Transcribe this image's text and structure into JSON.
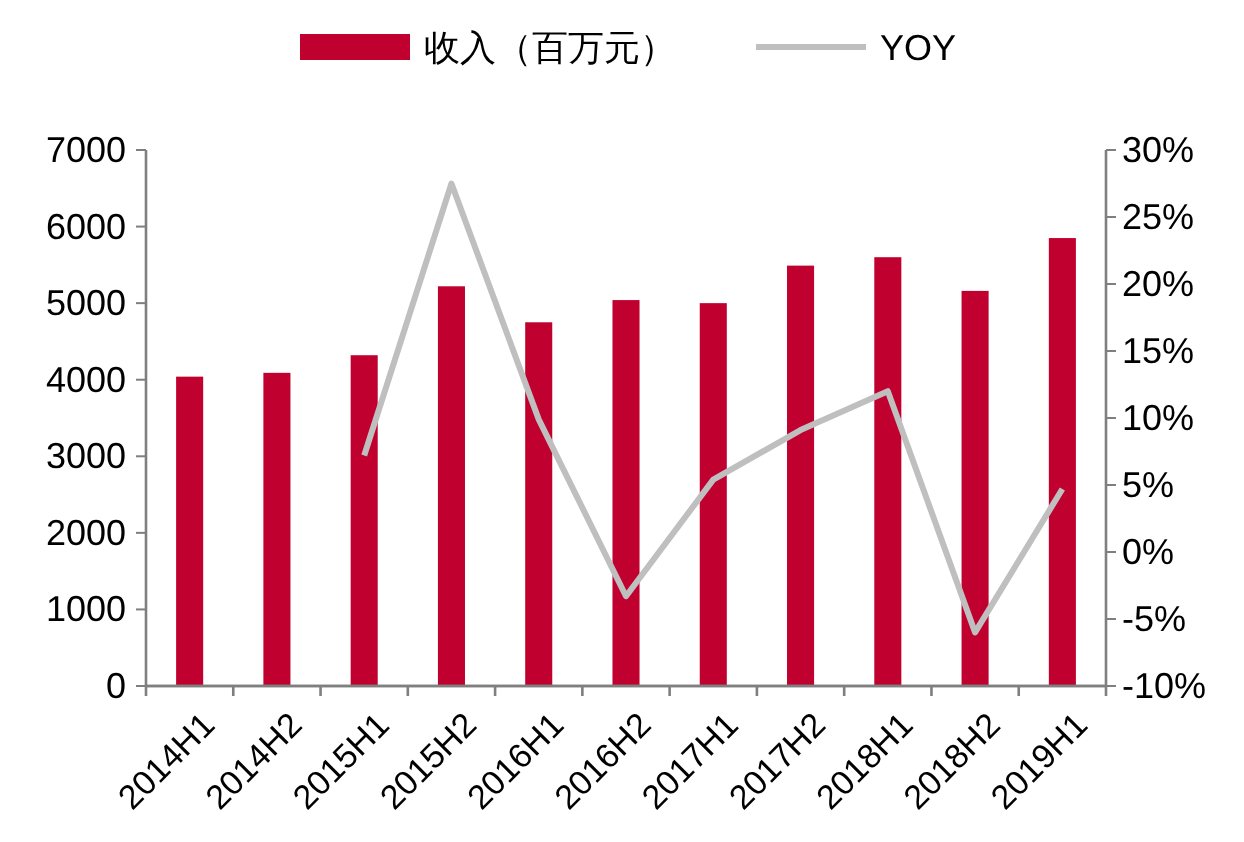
{
  "chart_data": {
    "type": "bar",
    "categories": [
      "2014H1",
      "2014H2",
      "2015H1",
      "2015H2",
      "2016H1",
      "2016H2",
      "2017H1",
      "2017H2",
      "2018H1",
      "2018H2",
      "2019H1"
    ],
    "series": [
      {
        "name": "收入（百万元）",
        "color": "#c0002f",
        "values": [
          4040,
          4090,
          4320,
          5220,
          4750,
          5040,
          5000,
          5490,
          5600,
          5160,
          5850
        ]
      },
      {
        "name": "YOY",
        "type": "line",
        "axis": "y2",
        "color": "#bfbfbf",
        "values": [
          null,
          null,
          7.2,
          27.5,
          9.9,
          -3.3,
          5.4,
          9.1,
          12.0,
          -6.0,
          4.7
        ]
      }
    ],
    "ylim": [
      0,
      7000
    ],
    "yticks": [
      0,
      1000,
      2000,
      3000,
      4000,
      5000,
      6000,
      7000
    ],
    "y2lim": [
      -10,
      30
    ],
    "y2ticks": [
      {
        "value": -10,
        "label": "-10%"
      },
      {
        "value": -5,
        "label": "-5%"
      },
      {
        "value": 0,
        "label": "0%"
      },
      {
        "value": 5,
        "label": "5%"
      },
      {
        "value": 10,
        "label": "10%"
      },
      {
        "value": 15,
        "label": "15%"
      },
      {
        "value": 20,
        "label": "20%"
      },
      {
        "value": 25,
        "label": "25%"
      },
      {
        "value": 30,
        "label": "30%"
      }
    ],
    "grid": false,
    "legend": "top"
  }
}
